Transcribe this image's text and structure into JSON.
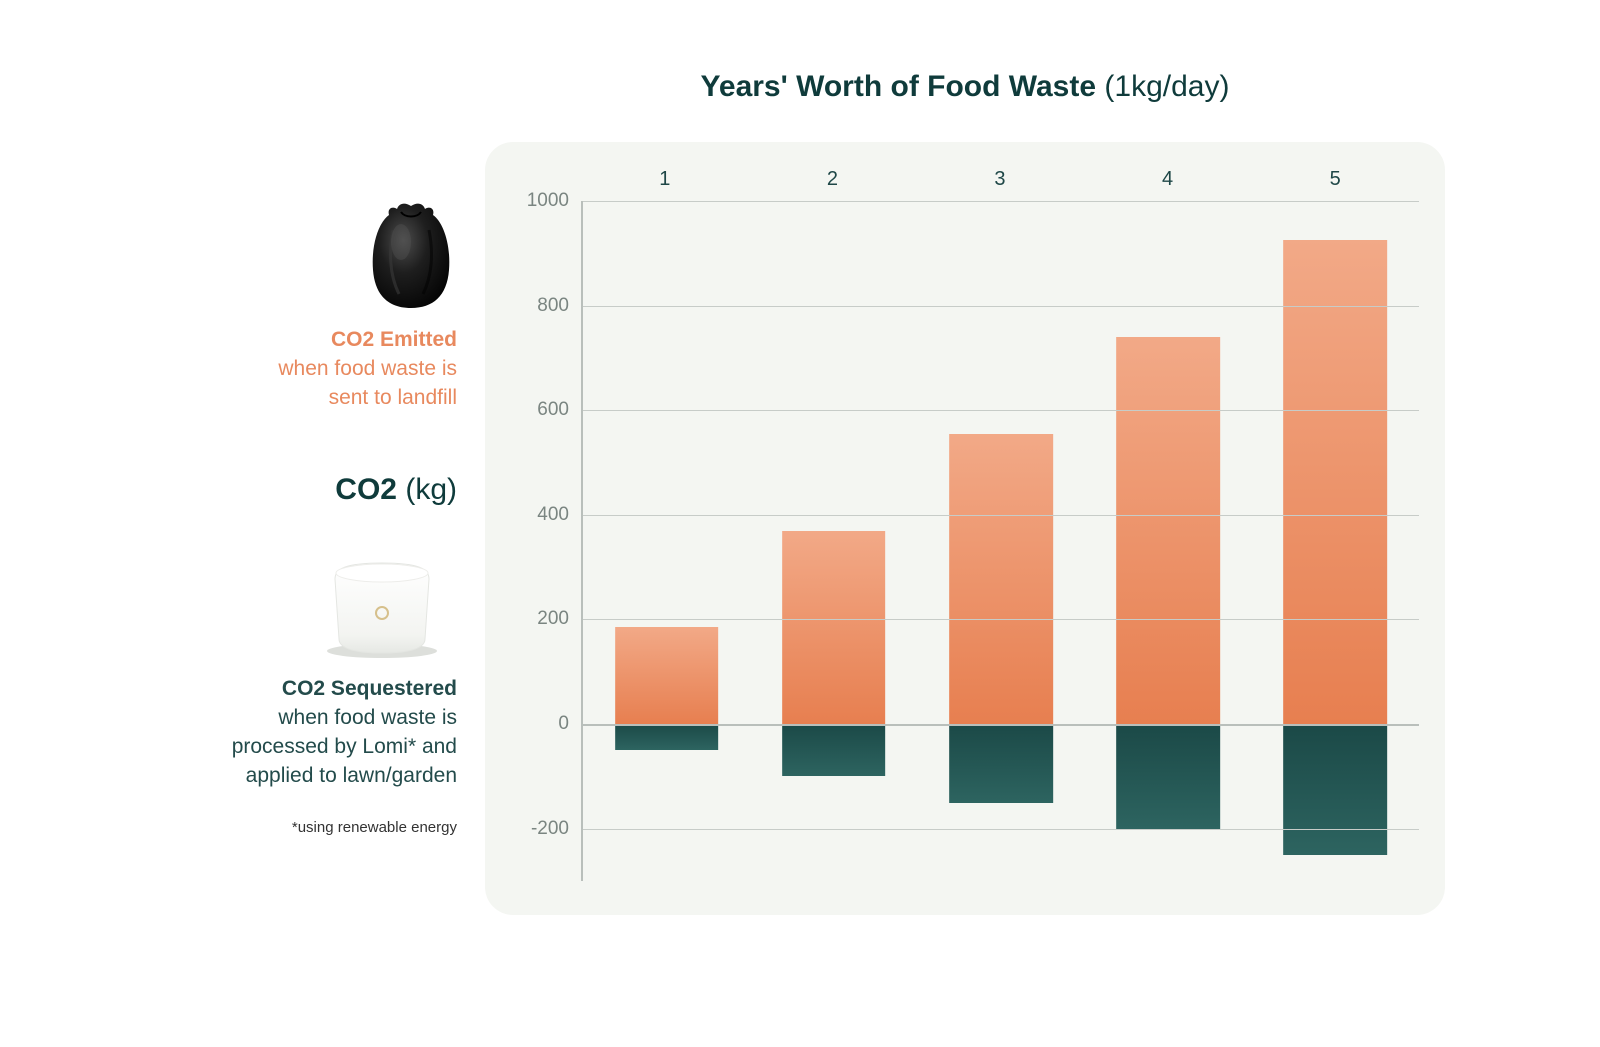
{
  "title": {
    "bold": "Years' Worth of Food Waste",
    "light": "(1kg/day)",
    "fontsize": 30,
    "color": "#0f3b3b"
  },
  "legend": {
    "emitted": {
      "strong": "CO2 Emitted",
      "body_l1": "when food waste is",
      "body_l2": "sent to landfill",
      "color": "#e8895e",
      "fontsize": 21
    },
    "axis_label": {
      "k": "CO2",
      "u": "(kg)",
      "color": "#0f3b3b",
      "fontsize": 30
    },
    "sequestered": {
      "strong": "CO2 Sequestered",
      "body_l1": "when food waste is",
      "body_l2": "processed by Lomi* and",
      "body_l3": "applied to lawn/garden",
      "color": "#234b4b",
      "fontsize": 21
    },
    "footnote": {
      "text": "*using renewable energy",
      "color": "#333333",
      "fontsize": 15
    }
  },
  "chart": {
    "type": "bar",
    "panel_bg": "#f4f6f2",
    "axis_color": "#b9bfbb",
    "grid_color": "#c7ccc8",
    "ytick_color": "#7a8581",
    "xtick_color": "#1e4747",
    "ytick_fontsize": 19,
    "xtick_fontsize": 20,
    "ymin": -300,
    "ymax": 1000,
    "yticks": [
      -200,
      0,
      200,
      400,
      600,
      800,
      1000
    ],
    "categories": [
      "1",
      "2",
      "3",
      "4",
      "5"
    ],
    "emitted_values": [
      185,
      370,
      555,
      740,
      925
    ],
    "sequestered_values": [
      -50,
      -100,
      -150,
      -200,
      -250
    ],
    "bar_width_pct": 62,
    "emitted_fill_top": "#f2a987",
    "emitted_fill_bottom": "#e77f50",
    "sequestered_fill_top": "#1b4947",
    "sequestered_fill_bottom": "#2d6460"
  },
  "icons": {
    "trash_bag": {
      "fill": "#121212",
      "mid": "#2b2b2b",
      "hi": "#4d4d4d"
    },
    "lomi": {
      "body": "#ffffff",
      "edge": "#e9ебе8",
      "shadow": "#d9dbd8",
      "ring": "#d6c08c"
    }
  }
}
